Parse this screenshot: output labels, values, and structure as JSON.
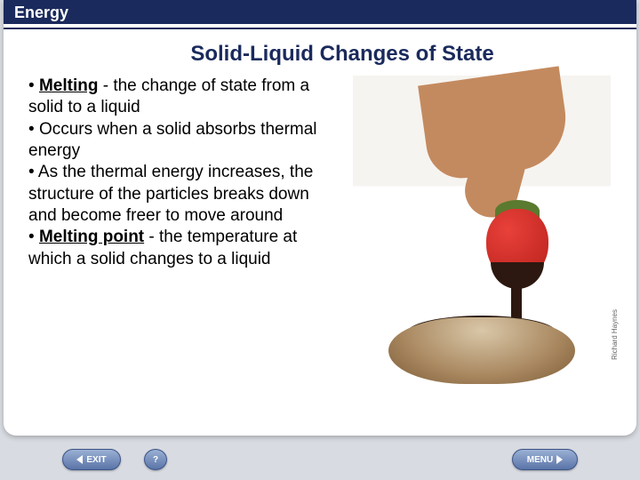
{
  "header": {
    "label": "Energy"
  },
  "title": "Solid-Liquid Changes of State",
  "bullets": [
    {
      "prefix": "•  ",
      "term": "Melting",
      "rest": " - the change of state from a solid to a liquid"
    },
    {
      "prefix": "•  ",
      "term": "",
      "rest": "Occurs when a solid absorbs thermal energy"
    },
    {
      "prefix": "•  ",
      "term": "",
      "rest": "As the thermal energy increases, the structure of the particles breaks down and become freer to move around"
    },
    {
      "prefix": "•  ",
      "term": "Melting point",
      "rest": " - the temperature at which a solid changes to a liquid"
    }
  ],
  "image": {
    "alt": "Hand dipping a strawberry into melted chocolate in a bowl",
    "credit": "Richard Haynes"
  },
  "footer": {
    "exit": "EXIT",
    "help": "?",
    "menu": "MENU"
  },
  "colors": {
    "header_bg": "#1a2a5c",
    "title_color": "#1a2a5c",
    "body_bg": "#d8dce2",
    "button_top": "#9ab0d4",
    "button_bottom": "#5a74a8"
  }
}
